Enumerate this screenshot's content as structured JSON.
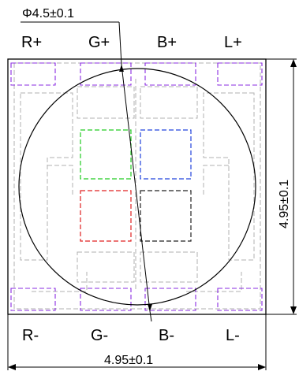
{
  "diagram": {
    "top_pins": [
      "R+",
      "G+",
      "B+",
      "L+"
    ],
    "bottom_pins": [
      "R-",
      "G-",
      "B-",
      "L-"
    ],
    "lens_diameter_label": "Φ4.5±0.1",
    "width_dimension": "4.95±0.1",
    "height_dimension": "4.95±0.1",
    "colors": {
      "outline": "#000000",
      "pad_outline": "#b0b0b0",
      "pin_pad": "#8a2be2",
      "red_chip": "#e02020",
      "green_chip": "#22cc22",
      "blue_chip": "#2244dd",
      "black_chip": "#222222"
    }
  }
}
